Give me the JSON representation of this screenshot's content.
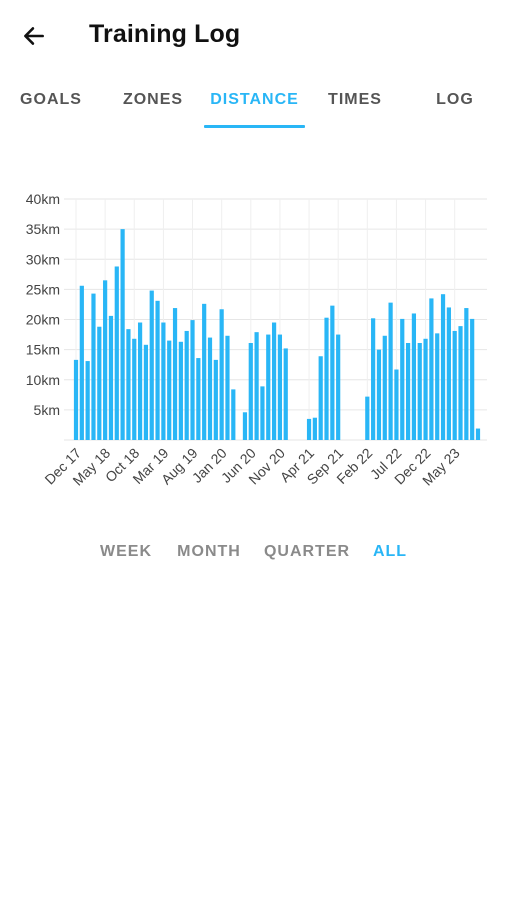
{
  "header": {
    "title": "Training Log",
    "back_icon": "arrow-left-icon"
  },
  "tabs": [
    {
      "label": "GOALS"
    },
    {
      "label": "ZONES"
    },
    {
      "label": "DISTANCE",
      "active": true
    },
    {
      "label": "TIMES"
    },
    {
      "label": "LOG"
    }
  ],
  "ranges": [
    {
      "label": "WEEK"
    },
    {
      "label": "MONTH"
    },
    {
      "label": "QUARTER"
    },
    {
      "label": "ALL",
      "active": true
    }
  ],
  "colors": {
    "accent": "#29b6f6",
    "bar": "#29b6f6",
    "grid": "#e6e6e6",
    "text": "#111111",
    "inactive": "#8a8a8a"
  },
  "chart_data": {
    "type": "bar",
    "unit": "km",
    "y_ticks": [
      "40km",
      "35km",
      "30km",
      "25km",
      "20km",
      "15km",
      "10km",
      "5km"
    ],
    "ylim": [
      0,
      40
    ],
    "grid": true,
    "x_tick_labels": [
      "Dec 17",
      "May 18",
      "Oct 18",
      "Mar 19",
      "Aug 19",
      "Jan 20",
      "Jun 20",
      "Nov 20",
      "Apr 21",
      "Sep 21",
      "Feb 22",
      "Jul 22",
      "Dec 22",
      "May 23"
    ],
    "categories": [
      "Dec 17",
      "Jan 18",
      "Feb 18",
      "Mar 18",
      "Apr 18",
      "May 18",
      "Jun 18",
      "Jul 18",
      "Aug 18",
      "Sep 18",
      "Oct 18",
      "Nov 18",
      "Dec 18",
      "Jan 19",
      "Feb 19",
      "Mar 19",
      "Apr 19",
      "May 19",
      "Jun 19",
      "Jul 19",
      "Aug 19",
      "Sep 19",
      "Oct 19",
      "Nov 19",
      "Dec 19",
      "Jan 20",
      "Feb 20",
      "Mar 20",
      "Apr 20",
      "May 20",
      "Jun 20",
      "Jul 20",
      "Aug 20",
      "Sep 20",
      "Oct 20",
      "Nov 20",
      "Dec 20",
      "Jan 21",
      "Feb 21",
      "Mar 21",
      "Apr 21",
      "May 21",
      "Jun 21",
      "Jul 21",
      "Aug 21",
      "Sep 21",
      "Oct 21",
      "Nov 21",
      "Dec 21",
      "Jan 22",
      "Feb 22",
      "Mar 22",
      "Apr 22",
      "May 22",
      "Jun 22",
      "Jul 22",
      "Aug 22",
      "Sep 22",
      "Oct 22",
      "Nov 22",
      "Dec 22",
      "Jan 23",
      "Feb 23",
      "Mar 23",
      "Apr 23",
      "May 23",
      "Jun 23",
      "Jul 23",
      "Aug 23",
      "Sep 23"
    ],
    "values": [
      13.3,
      25.6,
      13.1,
      24.3,
      18.8,
      26.5,
      20.6,
      28.8,
      35.0,
      18.4,
      16.8,
      19.5,
      15.8,
      24.8,
      23.1,
      19.5,
      16.5,
      21.9,
      16.3,
      18.1,
      19.9,
      13.6,
      22.6,
      17.0,
      13.3,
      21.7,
      17.3,
      8.4,
      0,
      4.6,
      16.1,
      17.9,
      8.9,
      17.5,
      19.5,
      17.5,
      15.2,
      0,
      0,
      0,
      3.5,
      3.7,
      13.9,
      20.3,
      22.3,
      17.5,
      0,
      0,
      0,
      0,
      7.2,
      20.2,
      15.0,
      17.3,
      22.8,
      11.7,
      20.1,
      16.1,
      21.0,
      16.1,
      16.8,
      23.5,
      17.7,
      24.2,
      22.0,
      18.1,
      18.9,
      21.9,
      20.1,
      1.9
    ]
  }
}
